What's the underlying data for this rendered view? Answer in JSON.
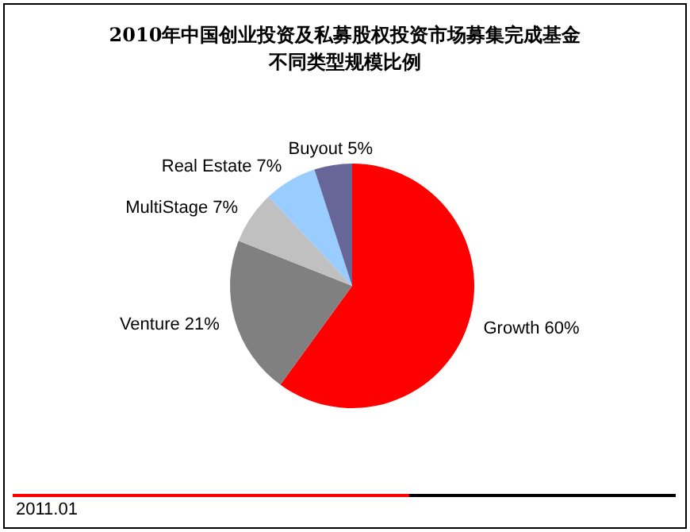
{
  "chart_data": {
    "type": "pie",
    "title": "2010年中国创业投资及私募股权投资市场募集完成基金不同类型规模比例",
    "categories": [
      "Growth",
      "Venture",
      "MultiStage",
      "Real Estate",
      "Buyout"
    ],
    "values": [
      60,
      21,
      7,
      7,
      5
    ],
    "value_labels": [
      "60%",
      "21%",
      "7%",
      "7%",
      "5%"
    ],
    "colors": [
      "#ff0000",
      "#808080",
      "#c0c0c0",
      "#99ccff",
      "#666699"
    ],
    "annotations": [
      "2011.01"
    ]
  }
}
